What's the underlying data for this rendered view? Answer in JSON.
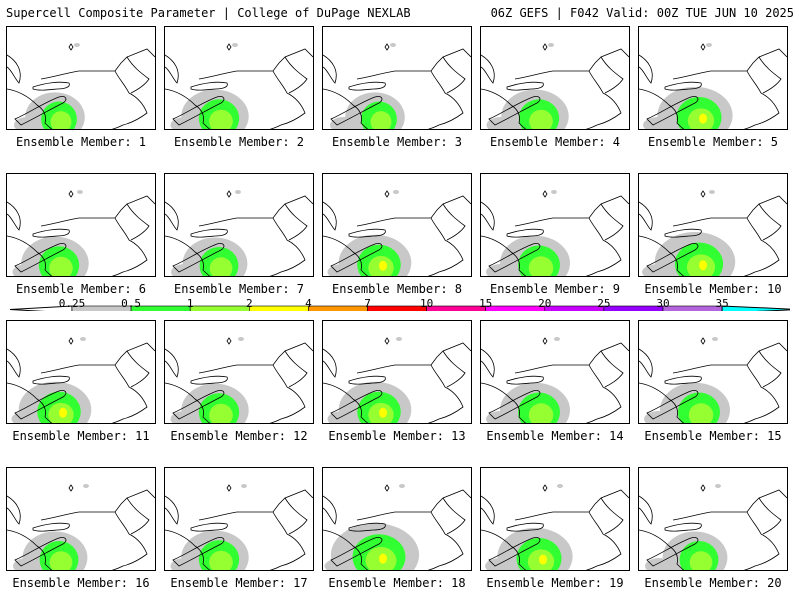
{
  "header": {
    "left": "Supercell Composite Parameter | College of DuPage NEXLAB",
    "right": "06Z GEFS | F042 Valid: 00Z TUE JUN 10 2025"
  },
  "panels": [
    {
      "label": "Ensemble Member: 1",
      "member": 1,
      "intensity": 0.3
    },
    {
      "label": "Ensemble Member: 2",
      "member": 2,
      "intensity": 0.45
    },
    {
      "label": "Ensemble Member: 3",
      "member": 3,
      "intensity": 0.3
    },
    {
      "label": "Ensemble Member: 4",
      "member": 4,
      "intensity": 0.45
    },
    {
      "label": "Ensemble Member: 5",
      "member": 5,
      "intensity": 0.6
    },
    {
      "label": "Ensemble Member: 6",
      "member": 6,
      "intensity": 0.45
    },
    {
      "label": "Ensemble Member: 7",
      "member": 7,
      "intensity": 0.4
    },
    {
      "label": "Ensemble Member: 8",
      "member": 8,
      "intensity": 0.55
    },
    {
      "label": "Ensemble Member: 9",
      "member": 9,
      "intensity": 0.5
    },
    {
      "label": "Ensemble Member: 10",
      "member": 10,
      "intensity": 0.7
    },
    {
      "label": "Ensemble Member: 11",
      "member": 11,
      "intensity": 0.55
    },
    {
      "label": "Ensemble Member: 12",
      "member": 12,
      "intensity": 0.45
    },
    {
      "label": "Ensemble Member: 13",
      "member": 13,
      "intensity": 0.55
    },
    {
      "label": "Ensemble Member: 14",
      "member": 14,
      "intensity": 0.5
    },
    {
      "label": "Ensemble Member: 15",
      "member": 15,
      "intensity": 0.5
    },
    {
      "label": "Ensemble Member: 16",
      "member": 16,
      "intensity": 0.4
    },
    {
      "label": "Ensemble Member: 17",
      "member": 17,
      "intensity": 0.45
    },
    {
      "label": "Ensemble Member: 18",
      "member": 18,
      "intensity": 0.85
    },
    {
      "label": "Ensemble Member: 19",
      "member": 19,
      "intensity": 0.6
    },
    {
      "label": "Ensemble Member: 20",
      "member": 20,
      "intensity": 0.4
    }
  ],
  "colorbar": {
    "ticks": [
      "0.25",
      "0.5",
      "1",
      "2",
      "4",
      "7",
      "10",
      "15",
      "20",
      "25",
      "30",
      "35"
    ],
    "colors": [
      "#c8c8c8",
      "#32ff32",
      "#96ff32",
      "#ffff00",
      "#ff9600",
      "#ff0000",
      "#ff0096",
      "#ff00ff",
      "#c800ff",
      "#9600ff",
      "#b464dc",
      "#00ffff"
    ]
  }
}
